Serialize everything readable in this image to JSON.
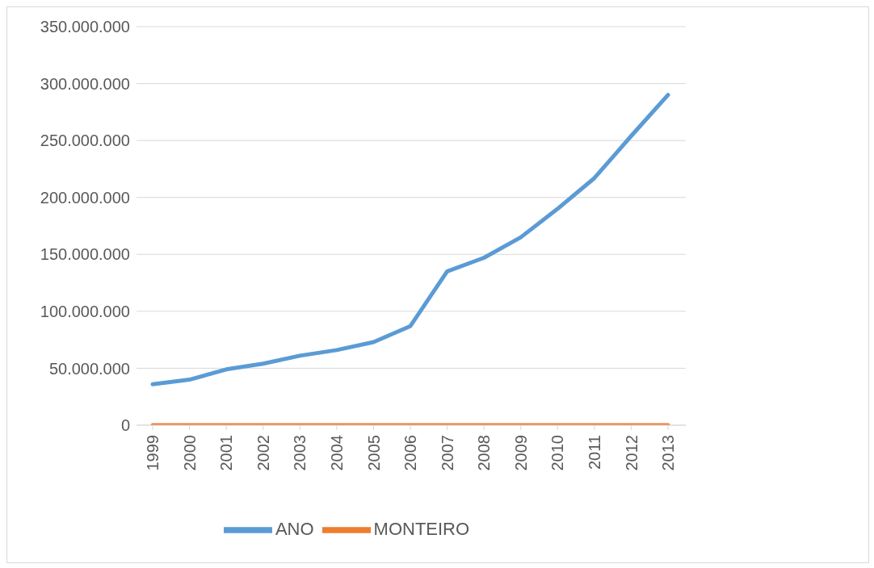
{
  "chart_data": {
    "type": "line",
    "categories": [
      "1999",
      "2000",
      "2001",
      "2002",
      "2003",
      "2004",
      "2005",
      "2006",
      "2007",
      "2008",
      "2009",
      "2010",
      "2011",
      "2012",
      "2013"
    ],
    "series": [
      {
        "name": "ANO",
        "color": "#5b9bd5",
        "values": [
          36000000,
          40000000,
          49000000,
          54000000,
          61000000,
          66000000,
          73000000,
          87000000,
          135000000,
          147000000,
          165000000,
          190000000,
          217000000,
          254000000,
          290000000
        ]
      },
      {
        "name": "MONTEIRO",
        "color": "#ed7d31",
        "values": [
          0,
          0,
          0,
          0,
          0,
          0,
          0,
          0,
          0,
          0,
          0,
          0,
          0,
          0,
          0
        ]
      }
    ],
    "ylim": [
      0,
      350000000
    ],
    "yticks": [
      0,
      {
        "value": 50000000,
        "label": "50.000.000"
      },
      {
        "value": 100000000,
        "label": "100.000.000"
      },
      {
        "value": 150000000,
        "label": "150.000.000"
      },
      {
        "value": 200000000,
        "label": "200.000.000"
      },
      {
        "value": 250000000,
        "label": "250.000.000"
      },
      {
        "value": 300000000,
        "label": "300.000.000"
      },
      {
        "value": 350000000,
        "label": "350.000.000"
      }
    ],
    "grid": "y",
    "legend": "bottom",
    "marker": "none",
    "line_style": "solid"
  }
}
